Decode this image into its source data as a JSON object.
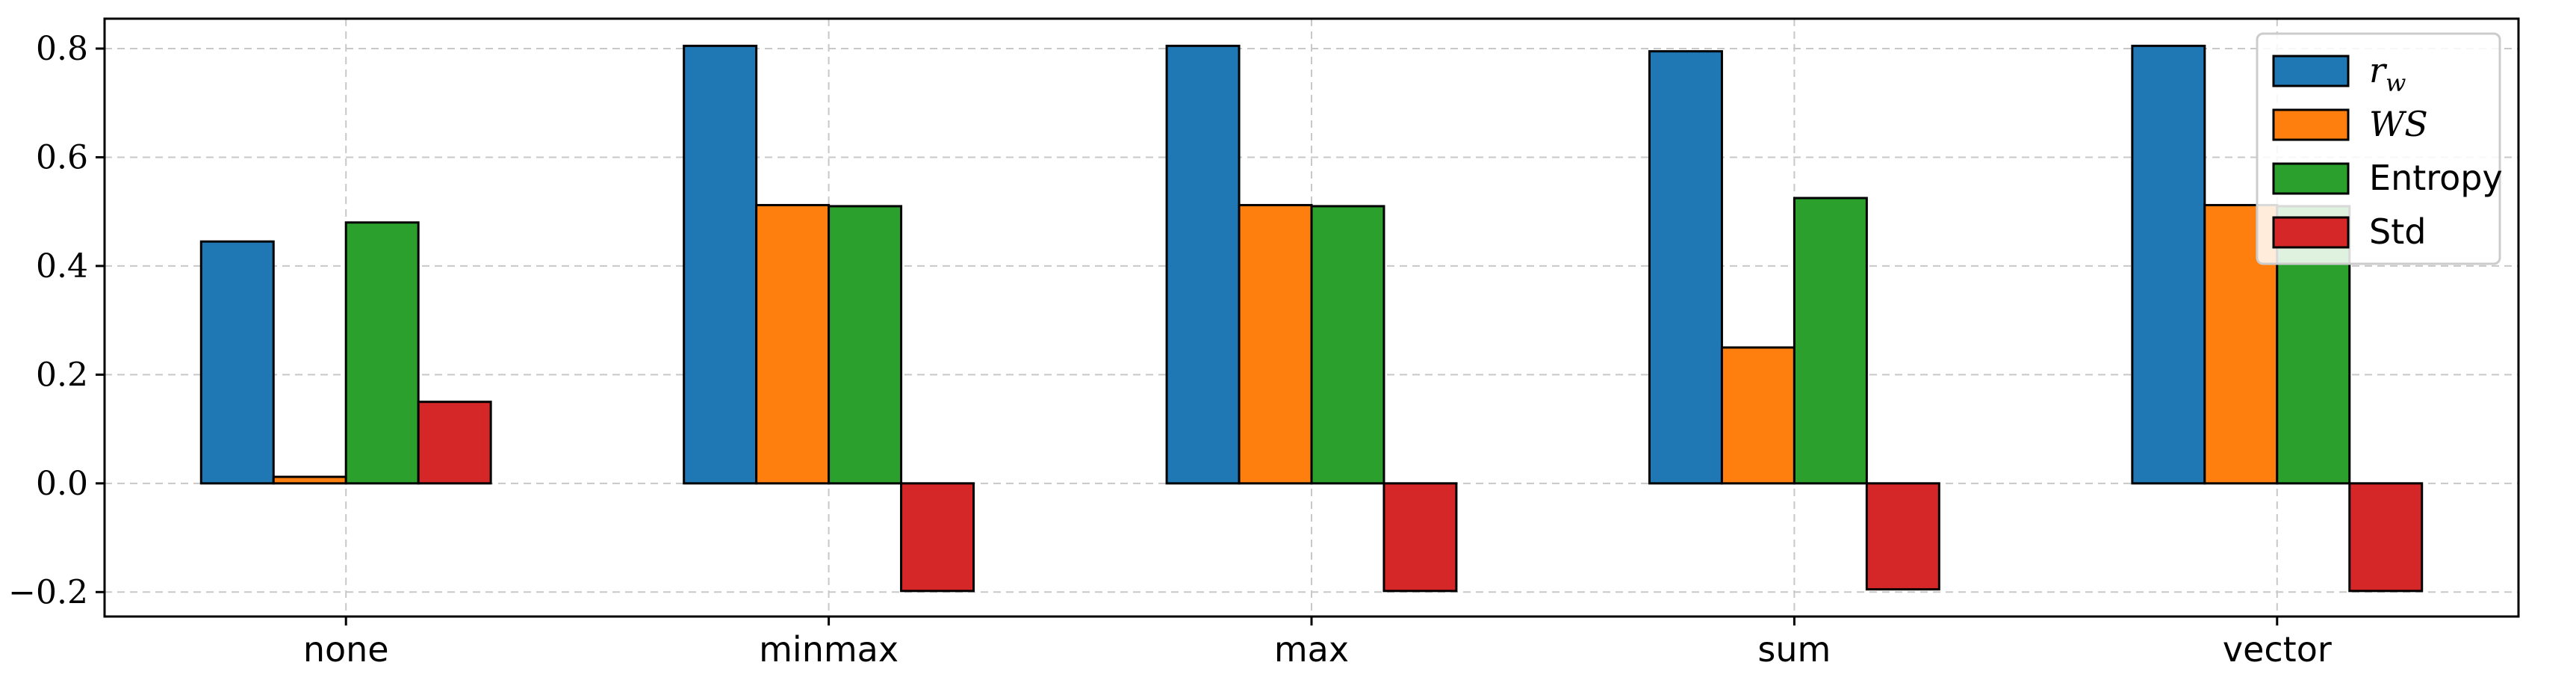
{
  "chart_data": {
    "type": "bar",
    "categories": [
      "none",
      "minmax",
      "max",
      "sum",
      "vector"
    ],
    "series": [
      {
        "name": "r_w",
        "legend_label": "r",
        "legend_sub": "w",
        "math": true,
        "color": "#1f77b4",
        "values": [
          0.445,
          0.805,
          0.805,
          0.795,
          0.805
        ]
      },
      {
        "name": "WS",
        "legend_label": "WS",
        "math": true,
        "color": "#ff7f0e",
        "values": [
          0.012,
          0.512,
          0.512,
          0.25,
          0.512
        ]
      },
      {
        "name": "Entropy",
        "legend_label": "Entropy",
        "math": false,
        "color": "#2ca02c",
        "values": [
          0.48,
          0.51,
          0.51,
          0.525,
          0.51
        ]
      },
      {
        "name": "Std",
        "legend_label": "Std",
        "math": false,
        "color": "#d62728",
        "values": [
          0.15,
          -0.198,
          -0.198,
          -0.195,
          -0.198
        ]
      }
    ],
    "yticks": [
      -0.2,
      0.0,
      0.2,
      0.4,
      0.6,
      0.8
    ],
    "ytick_labels": [
      "−0.2",
      "0.0",
      "0.2",
      "0.4",
      "0.6",
      "0.8"
    ],
    "ylim": [
      -0.245,
      0.855
    ],
    "grid": true,
    "legend_position": "top-right",
    "title": "",
    "xlabel": "",
    "ylabel": ""
  }
}
